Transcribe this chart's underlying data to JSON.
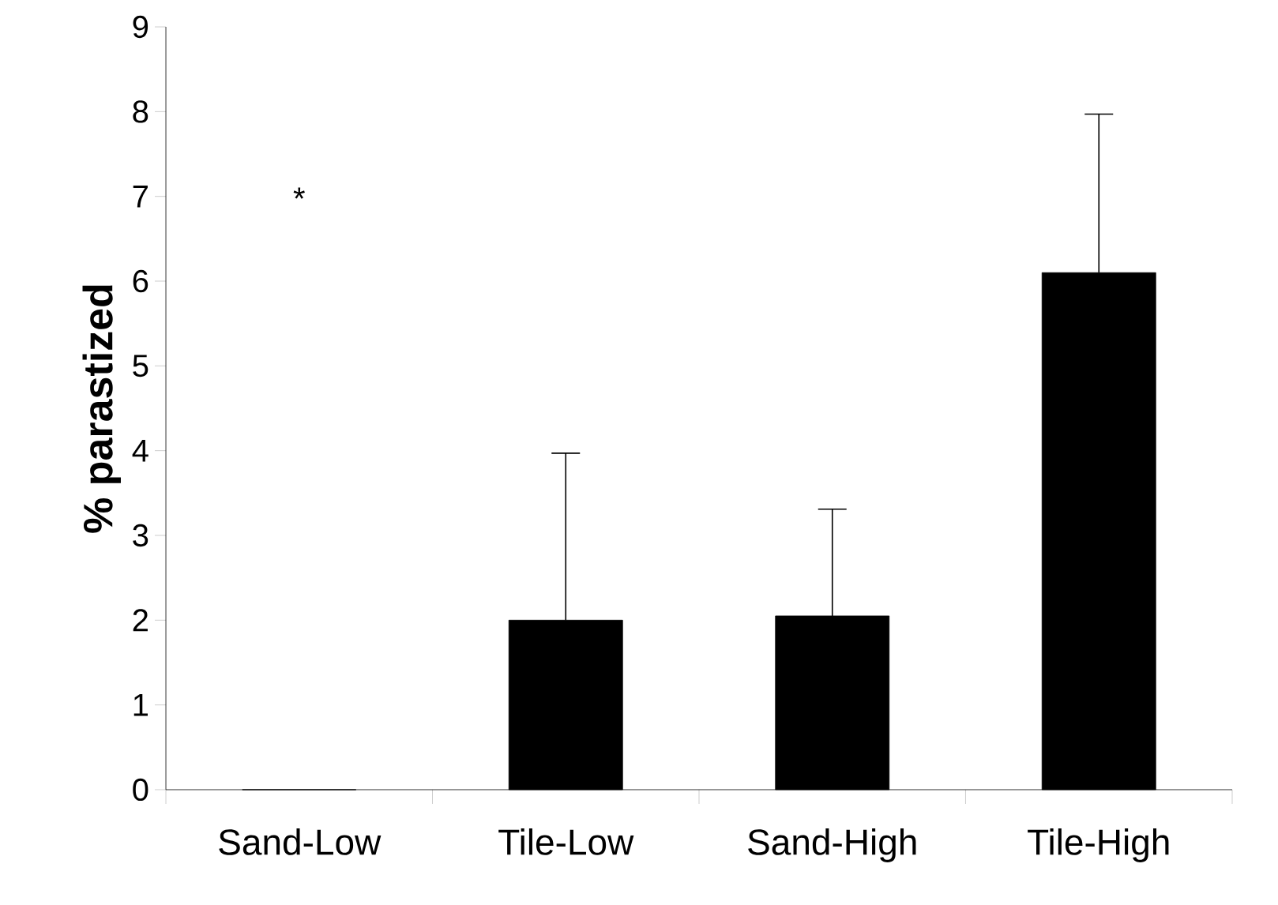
{
  "chart_data": {
    "type": "bar",
    "ylabel": "% parastized",
    "categories": [
      "Sand-Low",
      "Tile-Low",
      "Sand-High",
      "Tile-High"
    ],
    "values": [
      0,
      2.0,
      2.05,
      6.1
    ],
    "color": "#000000",
    "errors": [
      null,
      [
        2.0,
        3.97
      ],
      [
        2.05,
        3.31
      ],
      [
        6.1,
        7.97
      ]
    ],
    "ylim": [
      0,
      9
    ],
    "yticks": [
      0,
      1,
      2,
      3,
      4,
      5,
      6,
      7,
      8,
      9
    ],
    "annotations": [
      "*"
    ],
    "grid": false
  }
}
